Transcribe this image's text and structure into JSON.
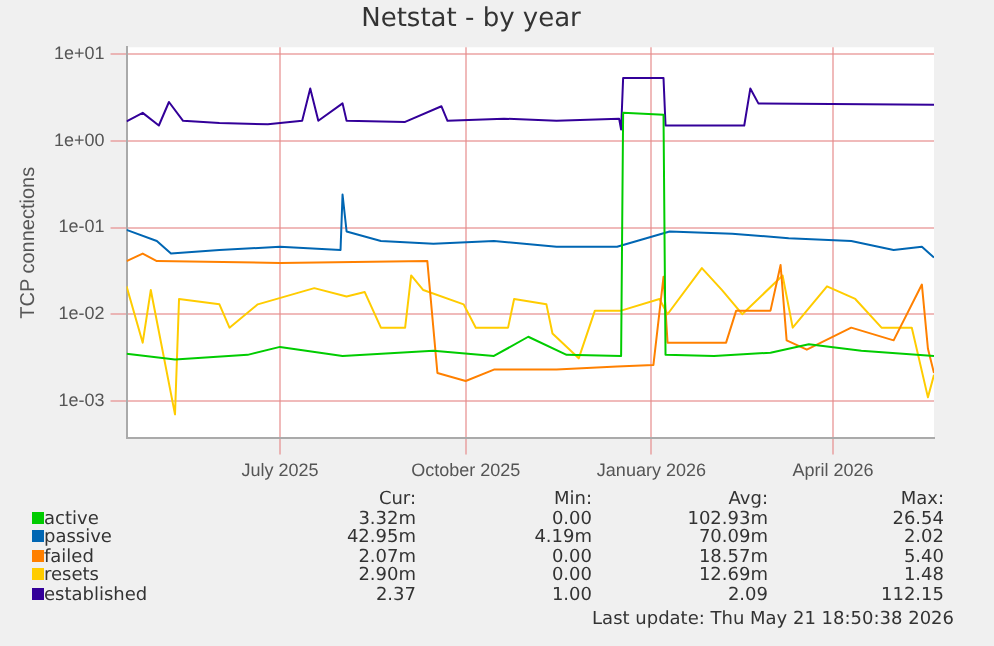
{
  "chart_data": {
    "type": "line",
    "title": "Netstat - by year",
    "ylabel": "TCP connections",
    "log": true,
    "grid": true,
    "legend": "bottom",
    "xlim": [
      "2025-04-16",
      "2026-05-21"
    ],
    "xticks": [
      {
        "value": "2025-07-01",
        "label": "July 2025"
      },
      {
        "value": "2025-10-01",
        "label": "October 2025"
      },
      {
        "value": "2026-01-01",
        "label": "January 2026"
      },
      {
        "value": "2026-04-01",
        "label": "April 2026"
      }
    ],
    "ylim": [
      0.00037,
      12
    ],
    "yticks": [
      {
        "value": 0.001,
        "label": "1e-03"
      },
      {
        "value": 0.01,
        "label": "1e-02"
      },
      {
        "value": 0.1,
        "label": "1e-01"
      },
      {
        "value": 1,
        "label": "1e+00"
      },
      {
        "value": 10,
        "label": "1e+01"
      }
    ],
    "series": [
      {
        "name": "active",
        "color": "#00cc00",
        "x": [
          "2025-04-16",
          "2025-05-10",
          "2025-06-15",
          "2025-07-01",
          "2025-08-01",
          "2025-09-15",
          "2025-10-15",
          "2025-11-01",
          "2025-11-20",
          "2025-12-17",
          "2025-12-18",
          "2026-01-07",
          "2026-01-08",
          "2026-02-01",
          "2026-03-01",
          "2026-03-20",
          "2026-04-15",
          "2026-05-21"
        ],
        "values": [
          0.0035,
          0.003,
          0.0034,
          0.0042,
          0.0033,
          0.0038,
          0.0033,
          0.0055,
          0.0034,
          0.0033,
          2.1,
          2.0,
          0.0034,
          0.0033,
          0.0036,
          0.0045,
          0.0038,
          0.0033
        ]
      },
      {
        "name": "passive",
        "color": "#0066b3",
        "x": [
          "2025-04-16",
          "2025-05-01",
          "2025-05-08",
          "2025-06-01",
          "2025-07-01",
          "2025-07-31",
          "2025-08-01",
          "2025-08-03",
          "2025-08-20",
          "2025-09-15",
          "2025-10-15",
          "2025-11-15",
          "2025-12-15",
          "2026-01-10",
          "2026-02-10",
          "2026-03-10",
          "2026-04-10",
          "2026-05-01",
          "2026-05-15",
          "2026-05-21"
        ],
        "values": [
          0.094,
          0.07,
          0.05,
          0.055,
          0.06,
          0.055,
          0.24,
          0.09,
          0.07,
          0.065,
          0.07,
          0.06,
          0.06,
          0.09,
          0.085,
          0.075,
          0.07,
          0.055,
          0.06,
          0.045
        ]
      },
      {
        "name": "failed",
        "color": "#ff8000",
        "x": [
          "2025-04-16",
          "2025-04-24",
          "2025-05-01",
          "2025-07-01",
          "2025-09-12",
          "2025-09-17",
          "2025-10-01",
          "2025-10-15",
          "2025-11-15",
          "2025-12-15",
          "2026-01-02",
          "2026-01-07",
          "2026-01-09",
          "2026-02-07",
          "2026-02-12",
          "2026-03-01",
          "2026-03-06",
          "2026-03-09",
          "2026-03-19",
          "2026-04-10",
          "2026-05-01",
          "2026-05-15",
          "2026-05-18",
          "2026-05-21"
        ],
        "values": [
          0.041,
          0.05,
          0.041,
          0.039,
          0.041,
          0.0021,
          0.0017,
          0.0023,
          0.0023,
          0.0025,
          0.0026,
          0.027,
          0.0047,
          0.0047,
          0.011,
          0.011,
          0.037,
          0.005,
          0.0039,
          0.007,
          0.005,
          0.022,
          0.004,
          0.0021
        ]
      },
      {
        "name": "resets",
        "color": "#ffcc00",
        "x": [
          "2025-04-16",
          "2025-04-24",
          "2025-04-28",
          "2025-05-10",
          "2025-05-12",
          "2025-06-01",
          "2025-06-06",
          "2025-06-20",
          "2025-07-18",
          "2025-08-03",
          "2025-08-12",
          "2025-08-20",
          "2025-09-01",
          "2025-09-04",
          "2025-09-10",
          "2025-09-30",
          "2025-10-06",
          "2025-10-22",
          "2025-10-25",
          "2025-11-10",
          "2025-11-13",
          "2025-11-26",
          "2025-12-04",
          "2025-12-17",
          "2026-01-05",
          "2026-01-09",
          "2026-01-26",
          "2026-02-05",
          "2026-02-15",
          "2026-03-07",
          "2026-03-12",
          "2026-03-29",
          "2026-04-12",
          "2026-04-25",
          "2026-05-10",
          "2026-05-18",
          "2026-05-21"
        ],
        "values": [
          0.021,
          0.0047,
          0.019,
          0.0007,
          0.015,
          0.013,
          0.007,
          0.013,
          0.02,
          0.016,
          0.018,
          0.007,
          0.007,
          0.028,
          0.019,
          0.013,
          0.007,
          0.007,
          0.015,
          0.013,
          0.006,
          0.0031,
          0.011,
          0.011,
          0.015,
          0.01,
          0.034,
          0.019,
          0.01,
          0.028,
          0.007,
          0.021,
          0.015,
          0.007,
          0.007,
          0.0011,
          0.002
        ]
      },
      {
        "name": "established",
        "color": "#330099",
        "x": [
          "2025-04-16",
          "2025-04-24",
          "2025-05-02",
          "2025-05-07",
          "2025-05-14",
          "2025-06-01",
          "2025-06-25",
          "2025-07-12",
          "2025-07-16",
          "2025-07-20",
          "2025-08-01",
          "2025-08-03",
          "2025-09-01",
          "2025-09-19",
          "2025-09-22",
          "2025-10-20",
          "2025-11-15",
          "2025-12-16",
          "2025-12-17",
          "2025-12-18",
          "2026-01-07",
          "2026-01-08",
          "2026-02-16",
          "2026-02-19",
          "2026-02-23",
          "2026-05-21"
        ],
        "values": [
          1.67,
          2.1,
          1.5,
          2.8,
          1.7,
          1.6,
          1.55,
          1.7,
          4.0,
          1.7,
          2.7,
          1.7,
          1.65,
          2.5,
          1.7,
          1.8,
          1.7,
          1.8,
          1.35,
          5.3,
          5.3,
          1.5,
          1.5,
          4.0,
          2.7,
          2.6
        ]
      }
    ],
    "annotations": [
      "Cur:",
      "Min:",
      "Avg:",
      "Max:",
      "3.32m",
      "0.00",
      "102.93m",
      "26.54",
      "42.95m",
      "4.19m",
      "70.09m",
      "2.02",
      "2.07m",
      "0.00",
      "18.57m",
      "5.40",
      "2.90m",
      "0.00",
      "12.69m",
      "1.48",
      "2.37",
      "1.00",
      "2.09",
      "112.15",
      "Last update: Thu May 21 18:50:38 2026"
    ]
  }
}
